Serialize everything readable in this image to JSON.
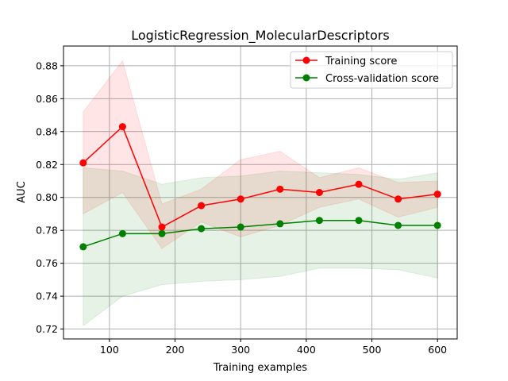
{
  "chart_data": {
    "type": "line",
    "title": "LogisticRegression_MolecularDescriptors",
    "xlabel": "Training examples",
    "ylabel": "AUC",
    "xlim": [
      30,
      630
    ],
    "ylim": [
      0.714,
      0.892
    ],
    "grid": true,
    "legend_position": "top-right",
    "xticks": [
      100,
      200,
      300,
      400,
      500,
      600
    ],
    "xtick_labels": [
      "100",
      "200",
      "300",
      "400",
      "500",
      "600"
    ],
    "yticks": [
      0.72,
      0.74,
      0.76,
      0.78,
      0.8,
      0.82,
      0.84,
      0.86,
      0.88
    ],
    "ytick_labels": [
      "0.72",
      "0.74",
      "0.76",
      "0.78",
      "0.80",
      "0.82",
      "0.84",
      "0.86",
      "0.88"
    ],
    "x": [
      60,
      120,
      180,
      240,
      300,
      360,
      420,
      480,
      540,
      600
    ],
    "series": [
      {
        "name": "Training score",
        "color": "#ff0000",
        "fill_color": "#ff0000",
        "values": [
          0.821,
          0.843,
          0.782,
          0.795,
          0.799,
          0.805,
          0.803,
          0.808,
          0.799,
          0.802
        ],
        "upper": [
          0.852,
          0.883,
          0.796,
          0.805,
          0.823,
          0.828,
          0.812,
          0.818,
          0.809,
          0.81
        ],
        "lower": [
          0.79,
          0.803,
          0.769,
          0.785,
          0.776,
          0.783,
          0.794,
          0.799,
          0.788,
          0.794
        ]
      },
      {
        "name": "Cross-validation score",
        "color": "#008000",
        "fill_color": "#008000",
        "values": [
          0.77,
          0.778,
          0.778,
          0.781,
          0.782,
          0.784,
          0.786,
          0.786,
          0.783,
          0.783
        ],
        "upper": [
          0.818,
          0.816,
          0.808,
          0.812,
          0.813,
          0.816,
          0.815,
          0.814,
          0.811,
          0.815
        ],
        "lower": [
          0.722,
          0.74,
          0.747,
          0.749,
          0.75,
          0.752,
          0.757,
          0.757,
          0.756,
          0.751
        ]
      }
    ]
  }
}
